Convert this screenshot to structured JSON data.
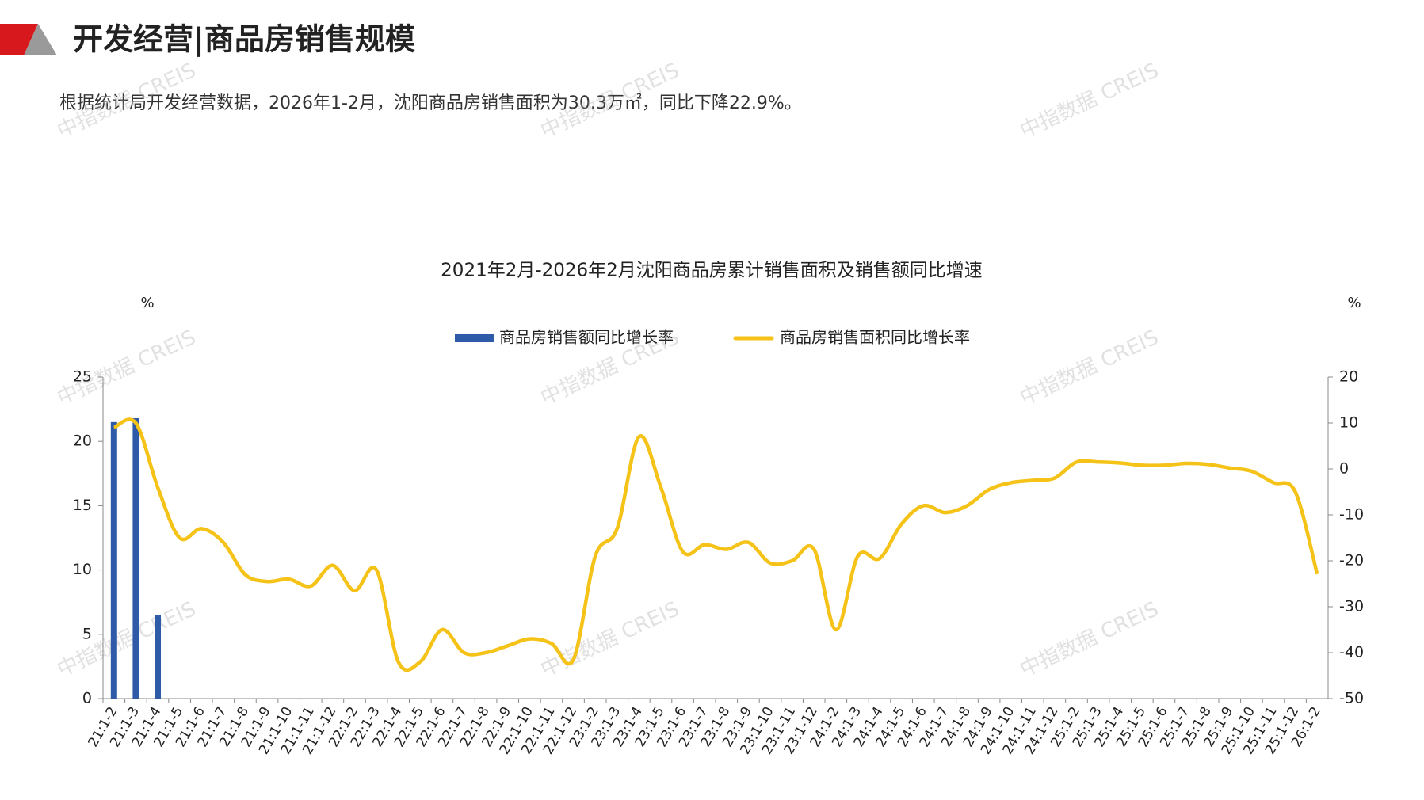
{
  "header": {
    "title": "开发经营|商品房销售规模",
    "summary": "根据统计局开发经营数据，2026年1-2月，沈阳商品房销售面积为30.3万㎡，同比下降22.9%。",
    "watermark": "中指数据 CREIS"
  },
  "chart_data": {
    "type": "bar_line",
    "title": "2021年2月-2026年2月沈阳商品房累计销售面积及销售额同比增速",
    "y_unit": "%",
    "y2_unit": "%",
    "legend": "top",
    "categories": [
      "21:1-2",
      "21:1-3",
      "21:1-4",
      "21:1-5",
      "21:1-6",
      "21:1-7",
      "21:1-8",
      "21:1-9",
      "21:1-10",
      "21:1-11",
      "21:1-12",
      "22:1-2",
      "22:1-3",
      "22:1-4",
      "22:1-5",
      "22:1-6",
      "22:1-7",
      "22:1-8",
      "22:1-9",
      "22:1-10",
      "22:1-11",
      "22:1-12",
      "23:1-2",
      "23:1-3",
      "23:1-4",
      "23:1-5",
      "23:1-6",
      "23:1-7",
      "23:1-8",
      "23:1-9",
      "23:1-10",
      "23:1-11",
      "23:1-12",
      "24:1-2",
      "24:1-3",
      "24:1-4",
      "24:1-5",
      "24:1-6",
      "24:1-7",
      "24:1-8",
      "24:1-9",
      "24:1-10",
      "24:1-11",
      "24:1-12",
      "25:1-2",
      "25:1-3",
      "25:1-4",
      "25:1-5",
      "25:1-6",
      "25:1-7",
      "25:1-8",
      "25:1-9",
      "25:1-10",
      "25:1-11",
      "25:1-12",
      "26:1-2"
    ],
    "series": [
      {
        "name": "商品房销售额同比增长率",
        "type": "bar",
        "color": "#2e5aa8",
        "values": [
          21.5,
          21.8,
          6.5,
          null,
          null,
          null,
          null,
          null,
          null,
          null,
          null,
          null,
          null,
          null,
          null,
          null,
          null,
          null,
          null,
          null,
          null,
          null,
          null,
          null,
          null,
          null,
          null,
          null,
          null,
          null,
          null,
          null,
          null,
          null,
          null,
          null,
          null,
          null,
          null,
          null,
          null,
          null,
          null,
          null,
          null,
          null,
          null,
          null,
          null,
          null,
          null,
          null,
          null,
          null,
          null,
          null
        ]
      },
      {
        "name": "商品房销售面积同比增长率",
        "type": "line",
        "axis": "y2",
        "color": "#f5c218",
        "values": [
          9,
          10,
          -4,
          -15,
          -13,
          -16,
          -23,
          -24.5,
          -24,
          -25.5,
          -21,
          -26.5,
          -22,
          -42,
          -42,
          -35,
          -40,
          -40,
          -38.5,
          -37,
          -38,
          -41.5,
          -19,
          -13,
          7,
          -4,
          -18,
          -16.5,
          -17.5,
          -16,
          -20.5,
          -20,
          -17.5,
          -35,
          -19,
          -19.5,
          -12,
          -8,
          -9.5,
          -8,
          -4.5,
          -3,
          -2.5,
          -2,
          1.5,
          1.5,
          1.3,
          0.8,
          0.8,
          1.2,
          1,
          0.2,
          -0.5,
          -3,
          -5,
          -22.9
        ]
      }
    ],
    "ylim": [
      0,
      25
    ],
    "yticks": [
      0,
      5,
      10,
      15,
      20,
      25
    ],
    "y2lim": [
      -50,
      20
    ],
    "y2ticks": [
      -50,
      -40,
      -30,
      -20,
      -10,
      0,
      10,
      20
    ]
  }
}
